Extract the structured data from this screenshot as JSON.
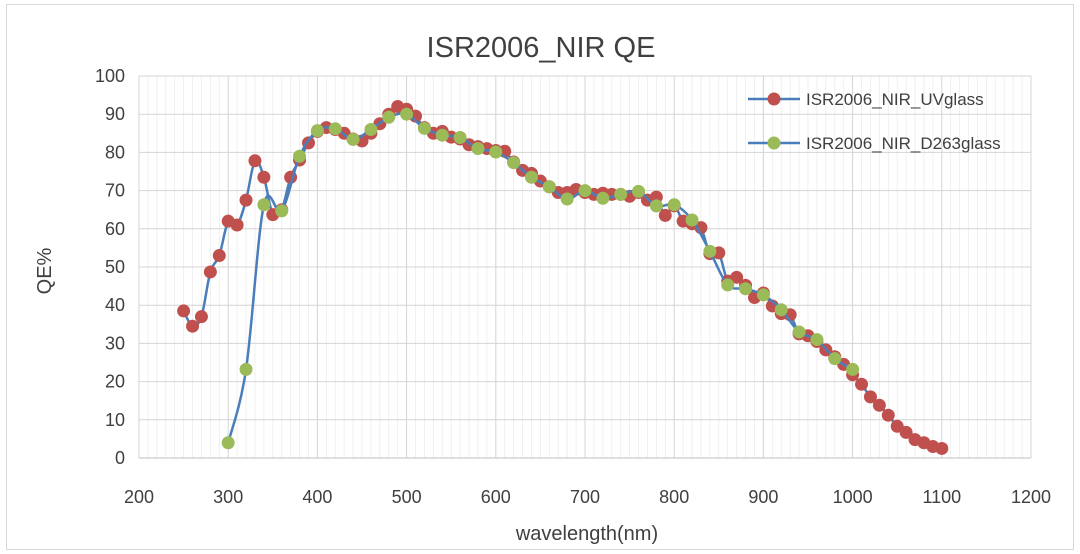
{
  "chart_data": {
    "type": "line",
    "title": "ISR2006_NIR QE",
    "xlabel": "wavelength(nm)",
    "ylabel": "QE%",
    "xlim": [
      200,
      1200
    ],
    "ylim": [
      0,
      100
    ],
    "x_ticks": [
      200,
      300,
      400,
      500,
      600,
      700,
      800,
      900,
      1000,
      1100,
      1200
    ],
    "y_ticks": [
      0,
      10,
      20,
      30,
      40,
      50,
      60,
      70,
      80,
      90,
      100
    ],
    "grid": true,
    "legend_position": "top-right",
    "line_color": "#4A7EBB",
    "series": [
      {
        "name": "ISR2006_NIR_UVglass",
        "marker_color": "#C0504D",
        "x": [
          250,
          260,
          270,
          280,
          290,
          300,
          310,
          320,
          330,
          340,
          350,
          360,
          370,
          380,
          390,
          400,
          410,
          420,
          430,
          440,
          450,
          460,
          470,
          480,
          490,
          500,
          510,
          520,
          530,
          540,
          550,
          560,
          570,
          580,
          590,
          600,
          610,
          620,
          630,
          640,
          650,
          660,
          670,
          680,
          690,
          700,
          710,
          720,
          730,
          740,
          750,
          760,
          770,
          780,
          790,
          800,
          810,
          820,
          830,
          840,
          850,
          860,
          870,
          880,
          890,
          900,
          910,
          920,
          930,
          940,
          950,
          960,
          970,
          980,
          990,
          1000,
          1010,
          1020,
          1030,
          1040,
          1050,
          1060,
          1070,
          1080,
          1090,
          1100
        ],
        "y": [
          38.5,
          34.5,
          37,
          48.7,
          53,
          62,
          61,
          67.5,
          77.8,
          73.5,
          63.7,
          65,
          73.5,
          78,
          82.5,
          85.5,
          86.5,
          86,
          85,
          83.5,
          83,
          85,
          87.5,
          90,
          92,
          91.3,
          89.5,
          86.5,
          85,
          85.5,
          84,
          83.5,
          82,
          81.5,
          81,
          80.5,
          80.3,
          77.5,
          75.3,
          74.5,
          72.5,
          71,
          69.5,
          69.5,
          70.3,
          69.5,
          69,
          69.3,
          69,
          69,
          68.5,
          69.5,
          67.5,
          68.3,
          63.5,
          66,
          62,
          61.3,
          60.3,
          53.5,
          53.7,
          46.3,
          47.3,
          45.2,
          42,
          43.2,
          39.8,
          37.8,
          37.5,
          32.5,
          32,
          30.5,
          28.3,
          26.5,
          24.5,
          21.8,
          19.3,
          16,
          13.8,
          11.2,
          8.3,
          6.7,
          4.8,
          4,
          3,
          2.5
        ]
      },
      {
        "name": "ISR2006_NIR_D263glass",
        "marker_color": "#9BBB59",
        "x": [
          300,
          320,
          340,
          360,
          380,
          400,
          420,
          440,
          460,
          480,
          500,
          520,
          540,
          560,
          580,
          600,
          620,
          640,
          660,
          680,
          700,
          720,
          740,
          760,
          780,
          800,
          820,
          840,
          860,
          880,
          900,
          920,
          940,
          960,
          980,
          1000
        ],
        "y": [
          4,
          23.2,
          66.3,
          64.7,
          79,
          85.7,
          86.2,
          83.4,
          86,
          89.2,
          90,
          86.3,
          84.5,
          83.9,
          81,
          80.1,
          77.3,
          73.5,
          71,
          67.8,
          70,
          68,
          69,
          69.8,
          66,
          66.3,
          62.3,
          54.1,
          45.3,
          44.3,
          42.7,
          38.8,
          33,
          31,
          26,
          23.2
        ]
      }
    ]
  }
}
